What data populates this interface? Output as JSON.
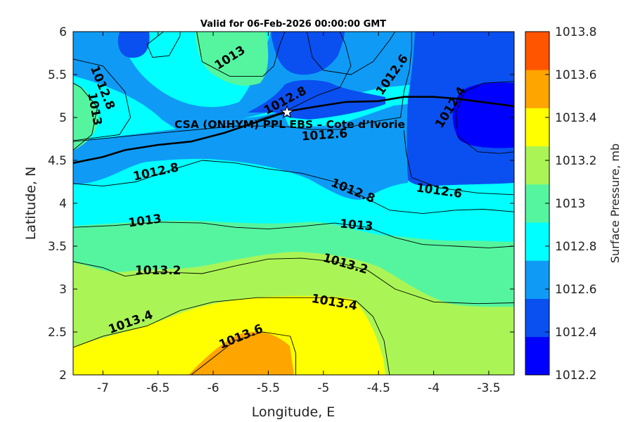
{
  "chart_data": {
    "type": "contour",
    "title": "Valid for 06-Feb-2026 00:00:00 GMT",
    "xlabel": "Longitude, E",
    "ylabel": "Latitude, N",
    "xlim": [
      -7.27,
      -3.27
    ],
    "ylim": [
      2,
      6
    ],
    "xticks": [
      -7,
      -6.5,
      -6,
      -5.5,
      -5,
      -4.5,
      -4,
      -3.5
    ],
    "yticks": [
      2,
      2.5,
      3,
      3.5,
      4,
      4.5,
      5,
      5.5,
      6
    ],
    "colorbar": {
      "label": "Surface Pressure, mb",
      "levels": [
        1012.2,
        1012.4,
        1012.6,
        1012.8,
        1013,
        1013.2,
        1013.4,
        1013.6,
        1013.8
      ],
      "tick_labels": [
        "1012.2",
        "1012.4",
        "1012.6",
        "1012.8",
        "1013",
        "1013.2",
        "1013.4",
        "1013.6",
        "1013.8"
      ],
      "colors": [
        "#0000FF",
        "#0A50F0",
        "#0F9BF5",
        "#00FFFF",
        "#55F5A0",
        "#AAF555",
        "#FFFF00",
        "#FFA500",
        "#FF5500"
      ]
    },
    "contour_lines": [
      {
        "level": "1012.6",
        "points": [
          [
            -7.27,
            4.72
          ],
          [
            -6.8,
            4.78
          ],
          [
            -6.3,
            4.84
          ],
          [
            -5.8,
            4.9
          ],
          [
            -5.4,
            4.9
          ],
          [
            -5.1,
            4.86
          ],
          [
            -4.85,
            4.86
          ],
          [
            -4.55,
            4.95
          ],
          [
            -4.3,
            5.0
          ],
          [
            -4.27,
            5.3
          ],
          [
            -4.22,
            5.55
          ],
          [
            -4.2,
            5.8
          ],
          [
            -4.2,
            6.0
          ]
        ]
      },
      {
        "level": "1012.6",
        "points": [
          [
            -4.27,
            4.85
          ],
          [
            -4.25,
            4.6
          ],
          [
            -4.2,
            4.3
          ],
          [
            -3.95,
            4.18
          ],
          [
            -3.6,
            4.12
          ],
          [
            -3.27,
            4.1
          ]
        ]
      },
      {
        "level": "1012.4",
        "points": [
          [
            -3.27,
            5.42
          ],
          [
            -3.55,
            5.4
          ],
          [
            -3.72,
            5.3
          ],
          [
            -3.8,
            5.05
          ],
          [
            -3.78,
            4.78
          ],
          [
            -3.6,
            4.6
          ],
          [
            -3.4,
            4.58
          ],
          [
            -3.27,
            4.6
          ]
        ]
      },
      {
        "level": "1012.4",
        "points": [
          [
            -6.45,
            6.0
          ],
          [
            -6.6,
            5.85
          ],
          [
            -6.55,
            5.7
          ],
          [
            -6.4,
            5.72
          ],
          [
            -6.3,
            5.95
          ],
          [
            -6.3,
            6.0
          ]
        ]
      },
      {
        "level": "1012.4",
        "points": [
          [
            -5.15,
            6.0
          ],
          [
            -5.1,
            5.7
          ],
          [
            -5.0,
            5.55
          ],
          [
            -4.75,
            5.5
          ],
          [
            -4.55,
            5.65
          ],
          [
            -4.4,
            5.9
          ],
          [
            -4.35,
            6.0
          ]
        ]
      },
      {
        "level": "1012.8",
        "points": [
          [
            -7.27,
            5.68
          ],
          [
            -7.0,
            5.6
          ],
          [
            -6.8,
            5.3
          ],
          [
            -6.75,
            5.0
          ],
          [
            -6.85,
            4.8
          ],
          [
            -7.27,
            4.73
          ]
        ]
      },
      {
        "level": "1012.8",
        "points": [
          [
            -7.27,
            4.23
          ],
          [
            -7.0,
            4.2
          ],
          [
            -6.7,
            4.25
          ],
          [
            -6.4,
            4.38
          ],
          [
            -6.1,
            4.5
          ],
          [
            -5.8,
            4.47
          ],
          [
            -5.5,
            4.4
          ],
          [
            -5.2,
            4.35
          ],
          [
            -4.9,
            4.25
          ],
          [
            -4.6,
            4.05
          ],
          [
            -4.4,
            3.92
          ],
          [
            -4.1,
            3.88
          ],
          [
            -3.8,
            3.92
          ],
          [
            -3.55,
            3.93
          ],
          [
            -3.27,
            3.9
          ]
        ]
      },
      {
        "level": "1012.8",
        "points": [
          [
            -5.6,
            4.97
          ],
          [
            -5.35,
            5.07
          ],
          [
            -5.05,
            5.26
          ],
          [
            -4.85,
            5.35
          ],
          [
            -4.75,
            5.6
          ],
          [
            -4.8,
            5.85
          ],
          [
            -4.85,
            6.0
          ]
        ]
      },
      {
        "level": "1013",
        "points": [
          [
            -7.27,
            5.4
          ],
          [
            -7.2,
            5.35
          ],
          [
            -7.05,
            5.12
          ],
          [
            -7.1,
            4.8
          ],
          [
            -7.27,
            4.62
          ]
        ]
      },
      {
        "level": "1013",
        "points": [
          [
            -6.15,
            6.0
          ],
          [
            -6.1,
            5.65
          ],
          [
            -5.85,
            5.48
          ],
          [
            -5.55,
            5.48
          ],
          [
            -5.45,
            5.6
          ],
          [
            -5.4,
            5.83
          ],
          [
            -5.35,
            6.0
          ]
        ]
      },
      {
        "level": "1013",
        "points": [
          [
            -7.27,
            3.72
          ],
          [
            -6.9,
            3.74
          ],
          [
            -6.5,
            3.78
          ],
          [
            -6.1,
            3.77
          ],
          [
            -5.8,
            3.72
          ],
          [
            -5.5,
            3.7
          ],
          [
            -5.2,
            3.73
          ],
          [
            -4.9,
            3.77
          ],
          [
            -4.6,
            3.72
          ],
          [
            -4.35,
            3.6
          ],
          [
            -4.1,
            3.52
          ],
          [
            -3.8,
            3.5
          ],
          [
            -3.5,
            3.48
          ],
          [
            -3.27,
            3.5
          ]
        ]
      },
      {
        "level": "1013.2",
        "points": [
          [
            -7.27,
            3.32
          ],
          [
            -7.0,
            3.25
          ],
          [
            -6.8,
            3.15
          ],
          [
            -6.5,
            3.2
          ],
          [
            -6.1,
            3.18
          ],
          [
            -5.8,
            3.27
          ],
          [
            -5.5,
            3.35
          ],
          [
            -5.2,
            3.36
          ],
          [
            -4.9,
            3.32
          ],
          [
            -4.6,
            3.22
          ],
          [
            -4.35,
            3.0
          ],
          [
            -4.0,
            2.85
          ],
          [
            -3.6,
            2.83
          ],
          [
            -3.27,
            2.84
          ]
        ]
      },
      {
        "level": "1013.4",
        "points": [
          [
            -7.27,
            2.32
          ],
          [
            -7.0,
            2.45
          ],
          [
            -6.6,
            2.57
          ],
          [
            -6.3,
            2.75
          ],
          [
            -6.0,
            2.85
          ],
          [
            -5.6,
            2.9
          ],
          [
            -5.2,
            2.9
          ],
          [
            -4.9,
            2.9
          ],
          [
            -4.7,
            2.86
          ],
          [
            -4.55,
            2.68
          ],
          [
            -4.45,
            2.4
          ],
          [
            -4.4,
            2.0
          ]
        ]
      },
      {
        "level": "1013.6",
        "points": [
          [
            -6.2,
            2.0
          ],
          [
            -6.0,
            2.2
          ],
          [
            -5.8,
            2.4
          ],
          [
            -5.55,
            2.5
          ],
          [
            -5.3,
            2.45
          ],
          [
            -5.25,
            2.25
          ],
          [
            -5.25,
            2.0
          ]
        ]
      }
    ],
    "contour_labels": [
      {
        "text": "1013",
        "x": -5.85,
        "y": 5.7,
        "angle": -32
      },
      {
        "text": "1012.8",
        "x": -5.35,
        "y": 5.2,
        "angle": -28
      },
      {
        "text": "1012.8",
        "x": -7.0,
        "y": 5.35,
        "angle": 68
      },
      {
        "text": "1013",
        "x": -7.07,
        "y": 5.1,
        "angle": 80
      },
      {
        "text": "1012.6",
        "x": -4.38,
        "y": 5.5,
        "angle": -55
      },
      {
        "text": "1012.4",
        "x": -3.85,
        "y": 5.12,
        "angle": -58
      },
      {
        "text": "1012.6",
        "x": -4.99,
        "y": 4.8,
        "angle": -4
      },
      {
        "text": "1012.8",
        "x": -6.52,
        "y": 4.37,
        "angle": -12
      },
      {
        "text": "1012.8",
        "x": -4.73,
        "y": 4.15,
        "angle": 22
      },
      {
        "text": "1012.6",
        "x": -3.95,
        "y": 4.15,
        "angle": 8
      },
      {
        "text": "1013",
        "x": -6.62,
        "y": 3.8,
        "angle": -8
      },
      {
        "text": "1013",
        "x": -4.7,
        "y": 3.75,
        "angle": 5
      },
      {
        "text": "1013.2",
        "x": -6.5,
        "y": 3.22,
        "angle": 0
      },
      {
        "text": "1013.2",
        "x": -4.8,
        "y": 3.3,
        "angle": 16
      },
      {
        "text": "1013.4",
        "x": -6.75,
        "y": 2.62,
        "angle": -20
      },
      {
        "text": "1013.4",
        "x": -4.9,
        "y": 2.85,
        "angle": 10
      },
      {
        "text": "1013.6",
        "x": -5.75,
        "y": 2.45,
        "angle": -22
      }
    ],
    "coastline": [
      [
        -7.27,
        4.47
      ],
      [
        -7.0,
        4.54
      ],
      [
        -6.8,
        4.62
      ],
      [
        -6.5,
        4.68
      ],
      [
        -6.2,
        4.72
      ],
      [
        -5.9,
        4.82
      ],
      [
        -5.6,
        4.95
      ],
      [
        -5.33,
        5.07
      ],
      [
        -5.1,
        5.12
      ],
      [
        -4.8,
        5.18
      ],
      [
        -4.5,
        5.19
      ],
      [
        -4.27,
        5.24
      ],
      [
        -4.0,
        5.24
      ],
      [
        -3.8,
        5.22
      ],
      [
        -3.5,
        5.17
      ],
      [
        -3.27,
        5.13
      ]
    ],
    "station": {
      "label": "CSA (ONHYM) PPL EBS  – Cote d’Ivorie",
      "x": -5.33,
      "y": 5.06
    }
  }
}
